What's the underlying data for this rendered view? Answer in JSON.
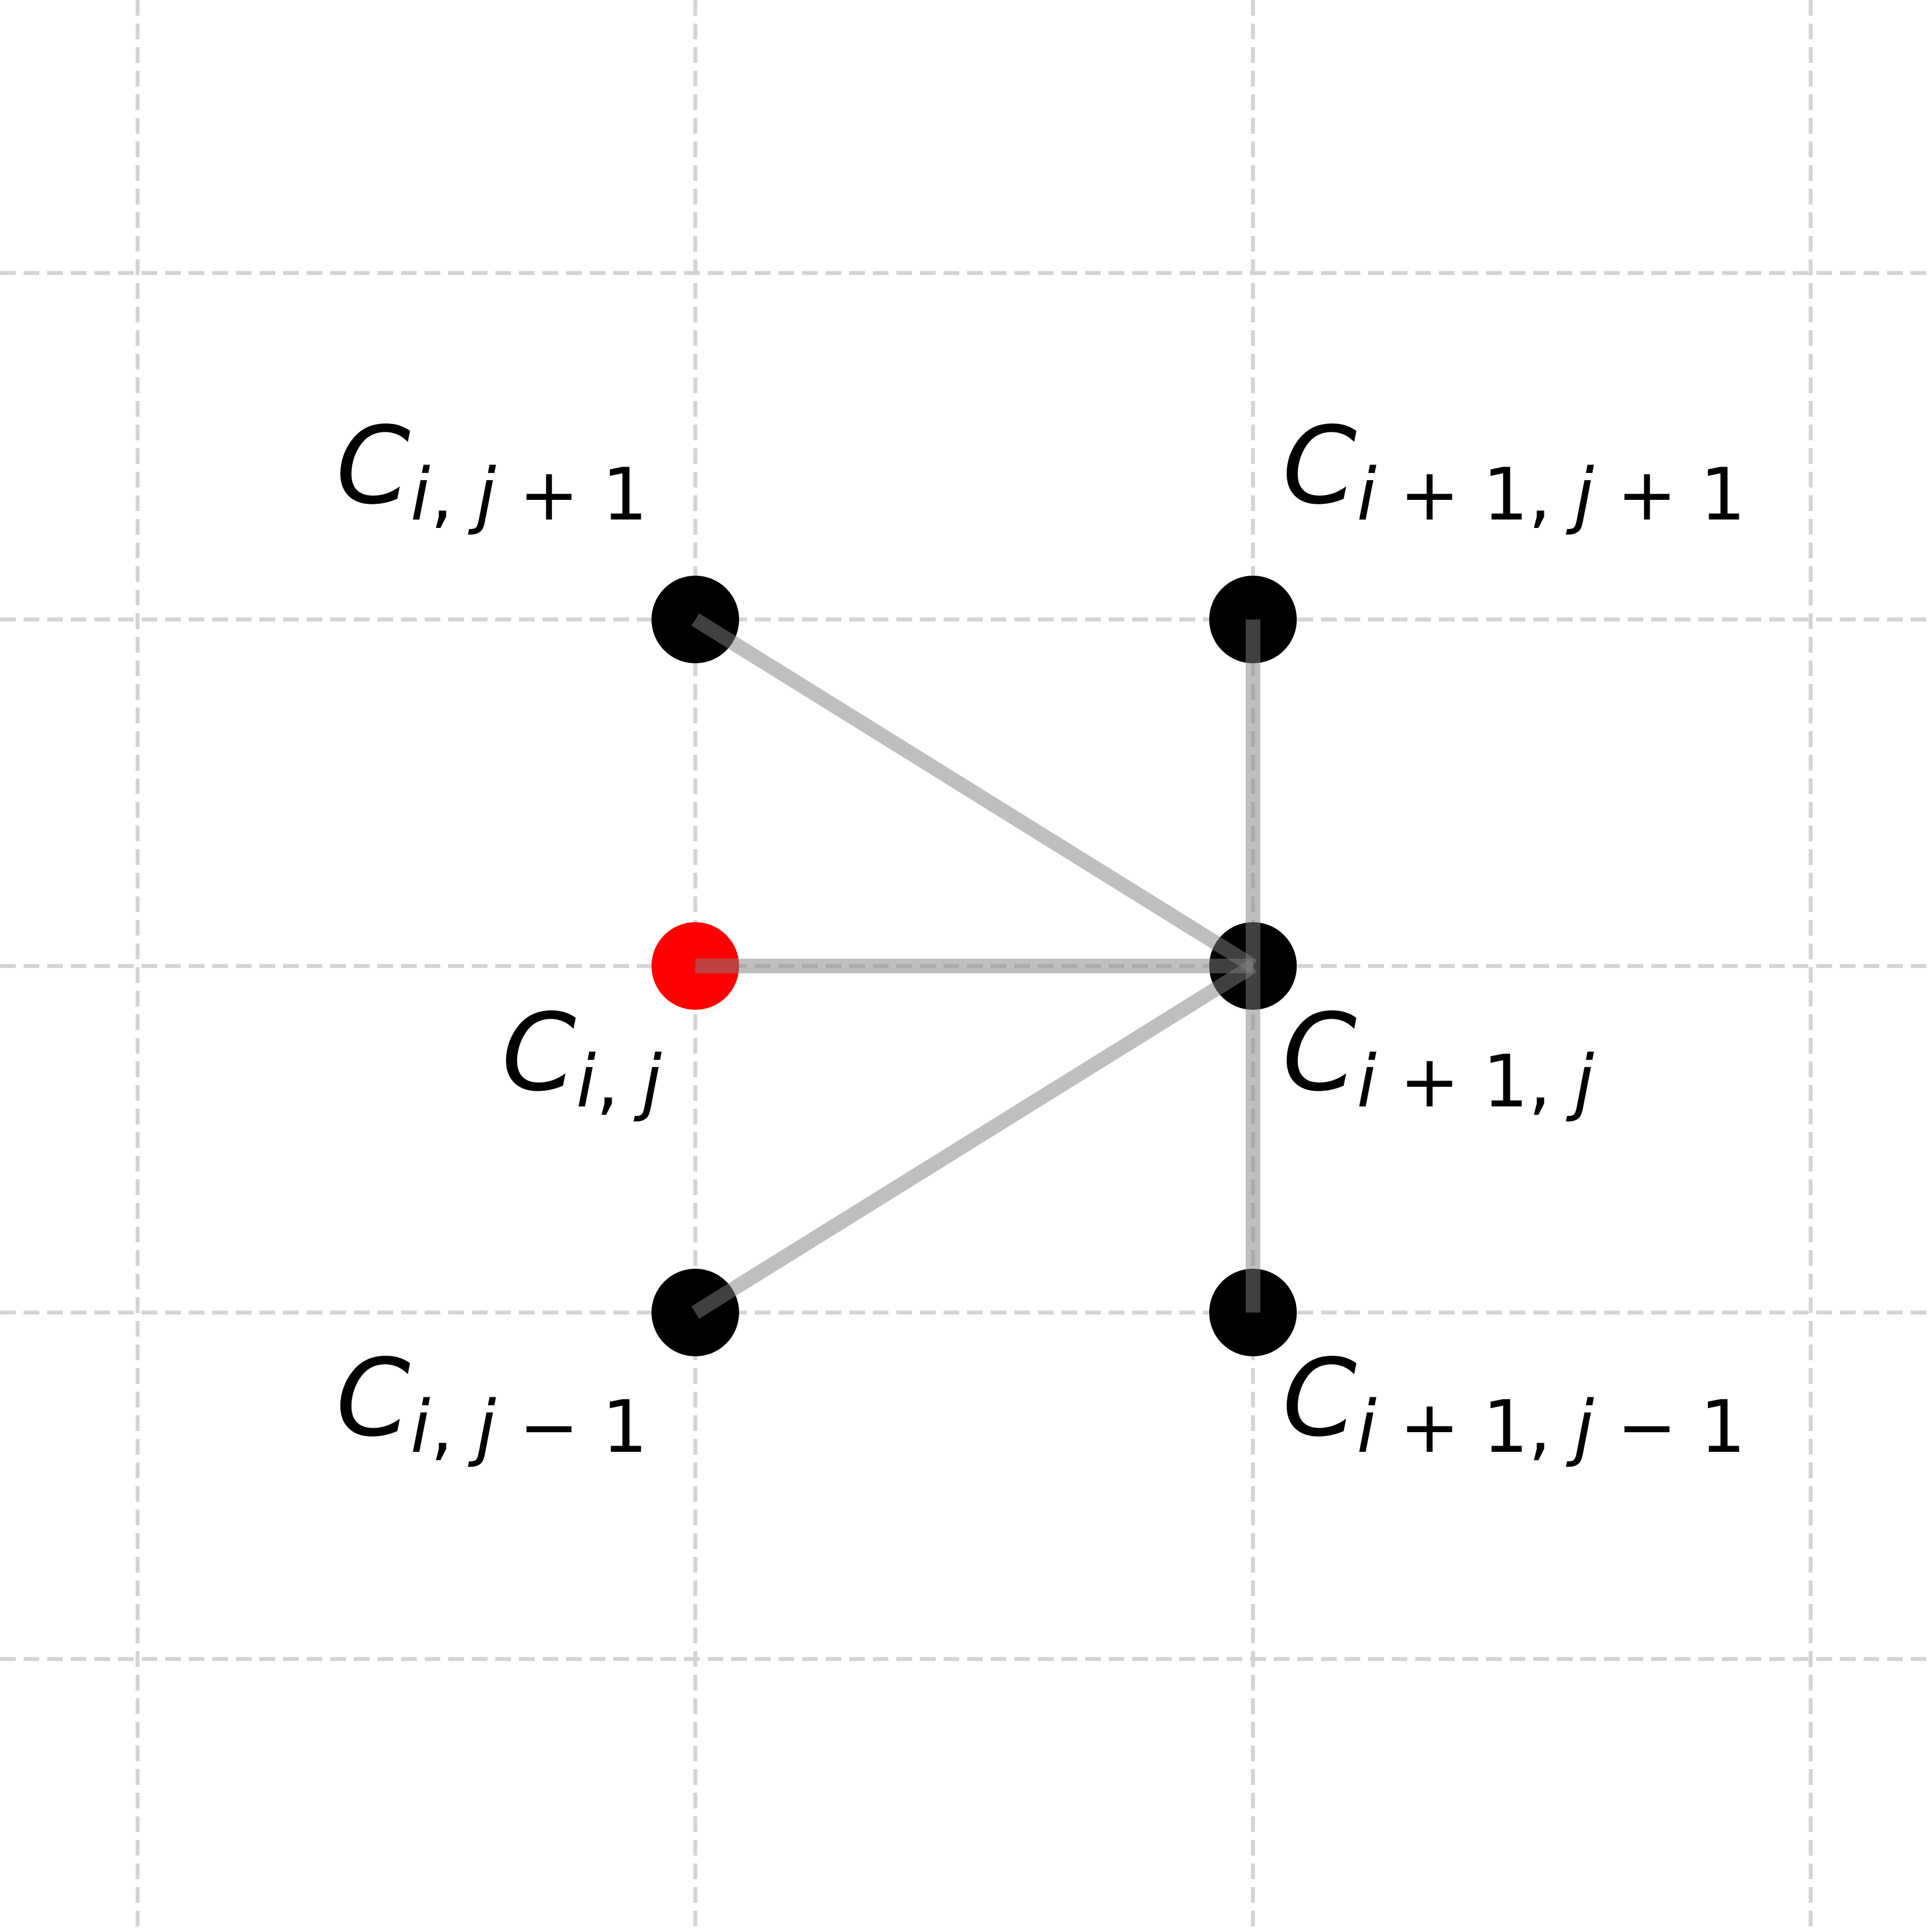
{
  "diagram": {
    "grid_columns": [
      -1,
      0,
      1,
      2
    ],
    "grid_rows": [
      -2,
      -1,
      0,
      1,
      2
    ],
    "edge_color": "#808080",
    "grid_color": "#d4d4d4",
    "nodes": [
      {
        "id": "n1",
        "col": 0,
        "row": 1,
        "color": "#000000",
        "label_main": "C",
        "label_sub": [
          {
            "t": "i",
            "it": true
          },
          {
            "t": ", ",
            "it": false
          },
          {
            "t": "j",
            "it": true
          },
          {
            "t": " + 1",
            "it": false
          }
        ]
      },
      {
        "id": "n2",
        "col": 1,
        "row": 1,
        "color": "#000000",
        "label_main": "C",
        "label_sub": [
          {
            "t": "i",
            "it": true
          },
          {
            "t": " + 1, ",
            "it": false
          },
          {
            "t": "j",
            "it": true
          },
          {
            "t": " + 1",
            "it": false
          }
        ]
      },
      {
        "id": "n3",
        "col": 0,
        "row": 0,
        "color": "#ff0000",
        "label_main": "C",
        "label_sub": [
          {
            "t": "i",
            "it": true
          },
          {
            "t": ", ",
            "it": false
          },
          {
            "t": "j",
            "it": true
          }
        ]
      },
      {
        "id": "n4",
        "col": 1,
        "row": 0,
        "color": "#000000",
        "label_main": "C",
        "label_sub": [
          {
            "t": "i",
            "it": true
          },
          {
            "t": " + 1, ",
            "it": false
          },
          {
            "t": "j",
            "it": true
          }
        ]
      },
      {
        "id": "n5",
        "col": 0,
        "row": -1,
        "color": "#000000",
        "label_main": "C",
        "label_sub": [
          {
            "t": "i",
            "it": true
          },
          {
            "t": ", ",
            "it": false
          },
          {
            "t": "j",
            "it": true
          },
          {
            "t": " − 1",
            "it": false
          }
        ]
      },
      {
        "id": "n6",
        "col": 1,
        "row": -1,
        "color": "#000000",
        "label_main": "C",
        "label_sub": [
          {
            "t": "i",
            "it": true
          },
          {
            "t": " + 1, ",
            "it": false
          },
          {
            "t": "j",
            "it": true
          },
          {
            "t": " − 1",
            "it": false
          }
        ]
      }
    ],
    "edges": [
      {
        "from": "n4",
        "to": "n1"
      },
      {
        "from": "n4",
        "to": "n2"
      },
      {
        "from": "n4",
        "to": "n3"
      },
      {
        "from": "n4",
        "to": "n5"
      },
      {
        "from": "n4",
        "to": "n6"
      }
    ]
  }
}
